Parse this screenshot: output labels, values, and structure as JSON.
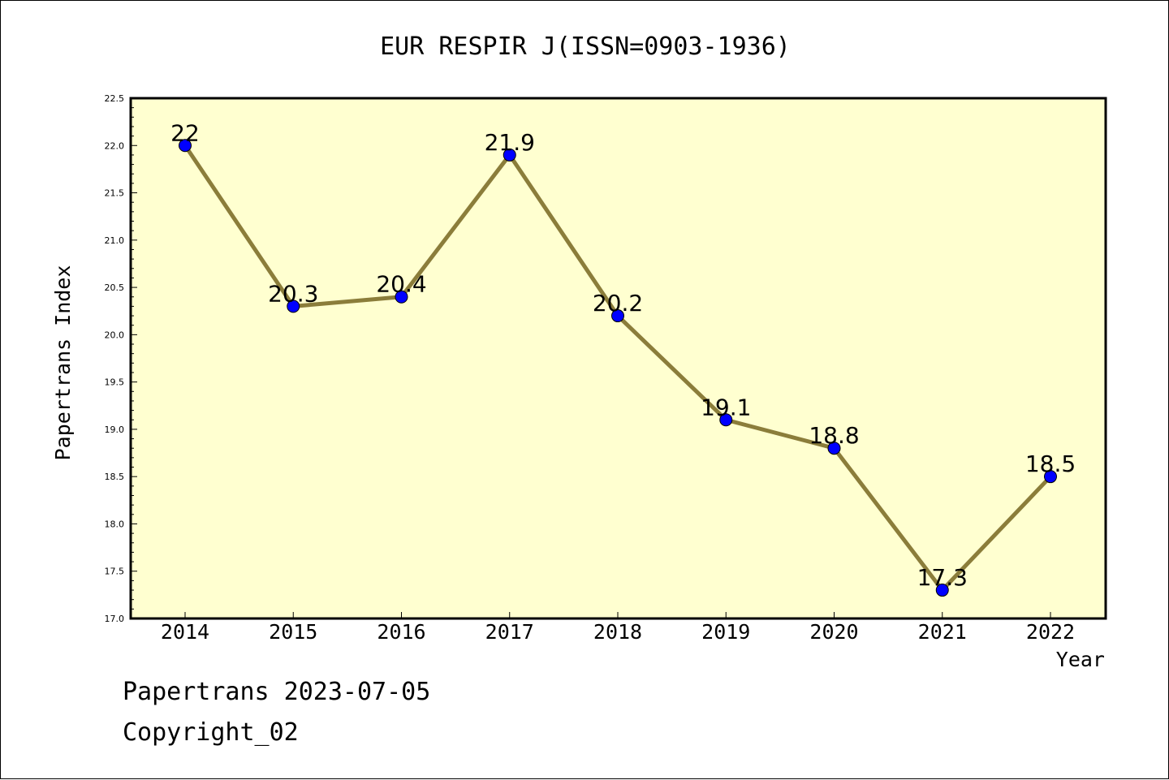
{
  "chart_data": {
    "type": "line",
    "title": "EUR RESPIR J(ISSN=0903-1936)",
    "xlabel": "Year",
    "ylabel": "Papertrans Index",
    "categories": [
      "2014",
      "2015",
      "2016",
      "2017",
      "2018",
      "2019",
      "2020",
      "2021",
      "2022"
    ],
    "series": [
      {
        "values": [
          22,
          20.3,
          20.4,
          21.9,
          20.2,
          19.1,
          18.8,
          17.3,
          18.5
        ],
        "labels": [
          "22",
          "20.3",
          "20.4",
          "21.9",
          "20.2",
          "19.1",
          "18.8",
          "17.3",
          "18.5"
        ]
      }
    ],
    "ylim": [
      17.0,
      22.5
    ],
    "yticks": [
      "17.0",
      "17.5",
      "18.0",
      "18.5",
      "19.0",
      "19.5",
      "20.0",
      "20.5",
      "21.0",
      "21.5",
      "22.0",
      "22.5"
    ],
    "grid": false,
    "legend": "none",
    "colors": {
      "plot_background": "#ffffd0",
      "line": "#8b7d3a",
      "marker": "#0000ff"
    }
  },
  "footer": {
    "line1": "Papertrans 2023-07-05",
    "line2": "Copyright_02"
  }
}
